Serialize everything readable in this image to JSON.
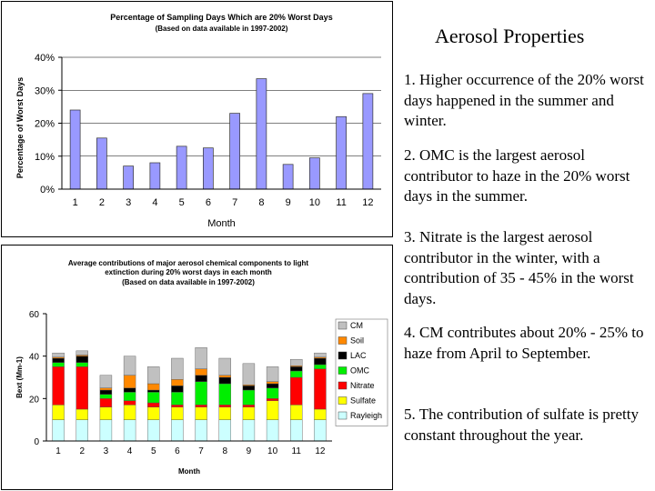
{
  "right_panel": {
    "title": "Aerosol Properties",
    "points": [
      "1. Higher occurrence of the 20% worst days happened in the summer and winter.",
      "2. OMC is the largest aerosol contributor to haze in the 20% worst days in the summer.",
      "3. Nitrate is the largest aerosol contributor in the winter, with a contribution of 35 - 45% in the worst days.",
      "4. CM contributes about 20% - 25% to haze from April to September.",
      "5. The contribution of sulfate is pretty constant throughout the year."
    ]
  },
  "chart_data": [
    {
      "type": "bar",
      "title": "Percentage of Sampling Days Which are 20% Worst Days",
      "subtitle": "(Based on data available in 1997-2002)",
      "xlabel": "Month",
      "ylabel": "Percentage of Worst Days",
      "categories": [
        "1",
        "2",
        "3",
        "4",
        "5",
        "6",
        "7",
        "8",
        "9",
        "10",
        "11",
        "12"
      ],
      "values": [
        24,
        15.5,
        7,
        8,
        13,
        12.5,
        23,
        33.5,
        7.5,
        9.5,
        22,
        29
      ],
      "ylim": [
        0,
        40
      ],
      "yticks": [
        "0%",
        "10%",
        "20%",
        "30%",
        "40%"
      ],
      "color": "#9999ff"
    },
    {
      "type": "stacked_bar",
      "title": "Average contributions of major aerosol chemical components to light",
      "title_line2": "extinction during 20% worst days in each month",
      "subtitle": "(Based on data available in 1997-2002)",
      "xlabel": "Month",
      "ylabel": "Bext (Mm-1)",
      "categories": [
        "1",
        "2",
        "3",
        "4",
        "5",
        "6",
        "7",
        "8",
        "9",
        "10",
        "11",
        "12"
      ],
      "ylim": [
        0,
        60
      ],
      "yticks": [
        "0",
        "20",
        "40",
        "60"
      ],
      "series": [
        {
          "name": "Rayleigh",
          "color": "#ccffff",
          "values": [
            10,
            10,
            10,
            10,
            10,
            10,
            10,
            10,
            10,
            10,
            10,
            10
          ]
        },
        {
          "name": "Sulfate",
          "color": "#ffff00",
          "values": [
            7,
            5,
            6,
            7,
            6,
            6,
            6,
            6,
            6,
            9,
            7,
            5
          ]
        },
        {
          "name": "Nitrate",
          "color": "#ff0000",
          "values": [
            18,
            20,
            4,
            2,
            2,
            1,
            1,
            1,
            1,
            1,
            13,
            19
          ]
        },
        {
          "name": "OMC",
          "color": "#00ee00",
          "values": [
            2,
            2,
            2,
            4,
            5,
            6,
            11,
            10,
            7,
            5,
            3,
            2
          ]
        },
        {
          "name": "LAC",
          "color": "#000000",
          "values": [
            2,
            3,
            2,
            2,
            1,
            3,
            3,
            3,
            2,
            2,
            2,
            3
          ]
        },
        {
          "name": "Soil",
          "color": "#ff8800",
          "values": [
            0.5,
            0.5,
            1,
            6,
            3,
            3,
            3,
            1,
            0.5,
            1,
            0.5,
            0.5
          ]
        },
        {
          "name": "CM",
          "color": "#c0c0c0",
          "values": [
            2,
            2,
            6,
            9,
            8,
            10,
            10,
            8,
            10,
            7,
            3,
            2
          ]
        }
      ],
      "legend_order": [
        "CM",
        "Soil",
        "LAC",
        "OMC",
        "Nitrate",
        "Sulfate",
        "Rayleigh"
      ],
      "legend_position": "right"
    }
  ]
}
